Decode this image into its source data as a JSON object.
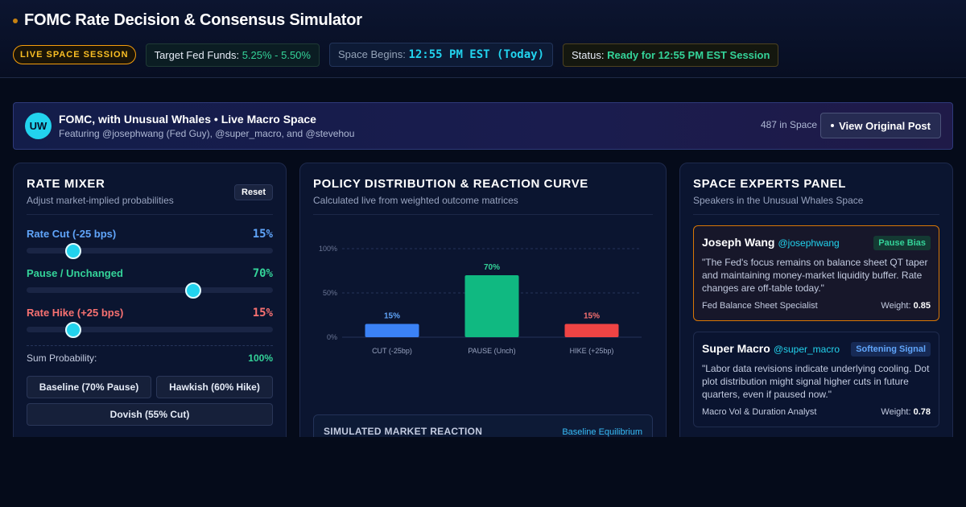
{
  "header": {
    "title": "FOMC Rate Decision & Consensus Simulator",
    "live_badge": "LIVE SPACE SESSION",
    "target_label": "Target Fed Funds:",
    "target_value": "5.25% - 5.50%",
    "space_label": "Space Begins:",
    "space_value": "12:55 PM EST (Today)",
    "status_label": "Status:",
    "status_value": "Ready for 12:55 PM EST Session"
  },
  "banner": {
    "avatar": "UW",
    "title": "FOMC, with Unusual Whales • Live Macro Space",
    "subtitle": "Featuring @josephwang (Fed Guy), @super_macro, and @stevehou",
    "listeners": "487 in Space",
    "view_button": "View Original Post"
  },
  "mixer": {
    "title": "RATE MIXER",
    "subtitle": "Adjust market-implied probabilities",
    "reset": "Reset",
    "sliders": [
      {
        "label": "Rate Cut (-25 bps)",
        "value": 15,
        "display": "15%"
      },
      {
        "label": "Pause / Unchanged",
        "value": 70,
        "display": "70%"
      },
      {
        "label": "Rate Hike (+25 bps)",
        "value": 15,
        "display": "15%"
      }
    ],
    "sum_label": "Sum Probability:",
    "sum_value": "100%",
    "presets": [
      "Baseline (70% Pause)",
      "Hawkish (60% Hike)",
      "Dovish (55% Cut)"
    ]
  },
  "policy": {
    "title": "POLICY DISTRIBUTION & REACTION CURVE",
    "subtitle": "Calculated live from weighted outcome matrices",
    "reaction_title": "SIMULATED MARKET REACTION",
    "reaction_tag": "Baseline Equilibrium"
  },
  "chart_data": {
    "type": "bar",
    "categories": [
      "CUT (-25bp)",
      "PAUSE (Unch)",
      "HIKE (+25bp)"
    ],
    "values": [
      15,
      70,
      15
    ],
    "value_labels": [
      "15%",
      "70%",
      "15%"
    ],
    "colors": [
      "#3b82f6",
      "#10b981",
      "#ef4444"
    ],
    "label_colors": [
      "#60a5fa",
      "#34d399",
      "#f87171"
    ],
    "yticks": [
      "0%",
      "50%",
      "100%"
    ],
    "ylim": [
      0,
      100
    ],
    "grid": true
  },
  "experts": {
    "title": "SPACE EXPERTS PANEL",
    "subtitle": "Speakers in the Unusual Whales Space",
    "cards": [
      {
        "name": "Joseph Wang",
        "handle": "@josephwang",
        "badge": "Pause Bias",
        "quote": "\"The Fed's focus remains on balance sheet QT taper and maintaining money-market liquidity buffer. Rate changes are off-table today.\"",
        "role": "Fed Balance Sheet Specialist",
        "weight_label": "Weight:",
        "weight": "0.85"
      },
      {
        "name": "Super Macro",
        "handle": "@super_macro",
        "badge": "Softening Signal",
        "quote": "\"Labor data revisions indicate underlying cooling. Dot plot distribution might signal higher cuts in future quarters, even if paused now.\"",
        "role": "Macro Vol & Duration Analyst",
        "weight_label": "Weight:",
        "weight": "0.78"
      }
    ]
  }
}
